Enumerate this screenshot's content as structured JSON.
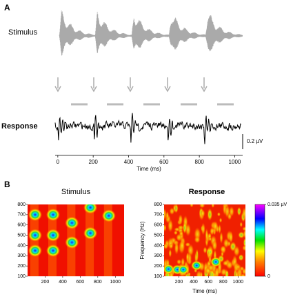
{
  "panel_a": {
    "label": "A",
    "stimulus_label": "Stimulus",
    "response_label": "Response",
    "scale_bar_label": "0.2 µV",
    "x_axis_label": "Time (ms)",
    "xlim": [
      -15,
      1045
    ],
    "xticks": [
      0,
      200,
      400,
      600,
      800,
      1000
    ]
  },
  "panel_b": {
    "label": "B",
    "stimulus": {
      "title": "Stimulus",
      "xlim": [
        0,
        1100
      ],
      "xticks": [
        200,
        400,
        600,
        800,
        1000
      ],
      "ylim": [
        100,
        800
      ],
      "yticks": [
        100,
        200,
        300,
        400,
        500,
        600,
        700,
        800
      ]
    },
    "response": {
      "title": "Response",
      "x_axis_label": "Time (ms)",
      "y_axis_label": "Frequency (Hz)",
      "xlim": [
        0,
        1100
      ],
      "xticks": [
        200,
        400,
        600,
        800,
        1000
      ],
      "ylim": [
        100,
        800
      ],
      "yticks": [
        100,
        200,
        300,
        400,
        500,
        600,
        700,
        800
      ]
    },
    "colorbar": {
      "range": [
        0,
        0.035
      ],
      "ticks": [
        0,
        {
          "value": 0.035,
          "label": "0.035 µV"
        }
      ]
    }
  }
}
